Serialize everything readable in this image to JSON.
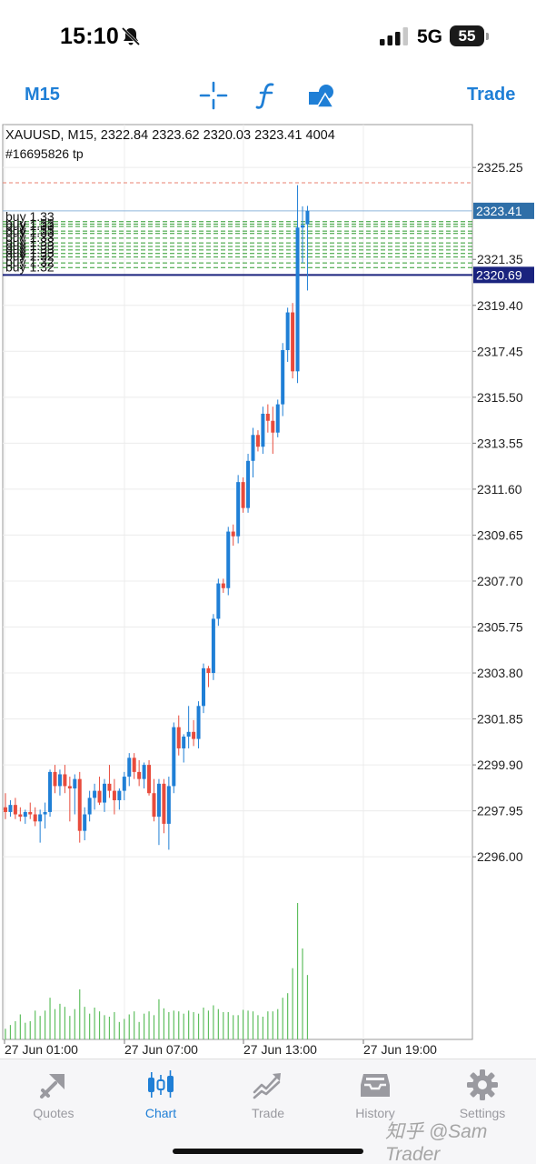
{
  "status_bar": {
    "time": "15:10",
    "network": "5G",
    "battery": "55"
  },
  "toolbar": {
    "timeframe": "M15",
    "trade_label": "Trade",
    "icons": [
      "crosshair-icon",
      "indicator-f-icon",
      "objects-icon"
    ]
  },
  "chart": {
    "header": "XAUUSD, M15, 2322.84 2323.62 2320.03 2323.41 4004",
    "order_label": "#16695826 tp",
    "tp_price": 2324.6,
    "bid_price": 2323.41,
    "order_price": 2320.69,
    "buy_lines": [
      {
        "price": 2322.95,
        "label": "buy 1.33"
      },
      {
        "price": 2322.85,
        "label": "buy 1.33"
      },
      {
        "price": 2322.75,
        "label": "buy 1.33"
      },
      {
        "price": 2322.55,
        "label": "buy 1.33"
      },
      {
        "price": 2322.45,
        "label": "buy 1.33"
      },
      {
        "price": 2322.25,
        "label": "buy 1.33"
      },
      {
        "price": 2322.05,
        "label": "buy 1.33"
      },
      {
        "price": 2321.9,
        "label": "buy 1.33"
      },
      {
        "price": 2321.75,
        "label": "buy 1.33"
      },
      {
        "price": 2321.6,
        "label": "buy 1.33"
      },
      {
        "price": 2321.45,
        "label": "buy 1.32"
      },
      {
        "price": 2321.2,
        "label": "buy 1.32"
      },
      {
        "price": 2321.0,
        "label": "buy 1.32"
      }
    ],
    "price_ticks": [
      "2325.25",
      "2321.35",
      "2319.40",
      "2317.45",
      "2315.50",
      "2313.55",
      "2311.60",
      "2309.65",
      "2307.70",
      "2305.75",
      "2303.80",
      "2301.85",
      "2299.90",
      "2297.95",
      "2296.00"
    ],
    "time_labels": [
      "27 Jun 01:00",
      "27 Jun 07:00",
      "27 Jun 13:00",
      "27 Jun 19:00"
    ],
    "colors": {
      "bull": "#1f7fd6",
      "bear": "#e84b3c",
      "volume": "#5fbf5f",
      "bid_tag": "#2f6fa8",
      "order_tag": "#1a237e",
      "buy_line": "#2e9a2e",
      "tp_line": "#e8826f"
    }
  },
  "chart_data": {
    "type": "candlestick",
    "symbol": "XAUUSD",
    "timeframe": "M15",
    "x_labels": [
      "27 Jun 01:00",
      "27 Jun 07:00",
      "27 Jun 13:00",
      "27 Jun 19:00"
    ],
    "ylim": [
      2294.0,
      2326.8
    ],
    "candles": [
      [
        2298.1,
        2298.7,
        2297.6,
        2297.9
      ],
      [
        2297.9,
        2298.4,
        2297.7,
        2298.2
      ],
      [
        2298.2,
        2298.5,
        2297.6,
        2297.8
      ],
      [
        2297.8,
        2298.1,
        2297.5,
        2297.7
      ],
      [
        2297.7,
        2298.0,
        2297.4,
        2297.9
      ],
      [
        2297.9,
        2298.3,
        2297.6,
        2297.8
      ],
      [
        2297.8,
        2298.1,
        2297.3,
        2297.5
      ],
      [
        2297.5,
        2298.0,
        2296.6,
        2297.8
      ],
      [
        2297.8,
        2298.3,
        2297.2,
        2297.9
      ],
      [
        2297.9,
        2299.7,
        2297.7,
        2299.6
      ],
      [
        2299.6,
        2299.9,
        2298.7,
        2299.0
      ],
      [
        2299.0,
        2299.7,
        2298.6,
        2299.5
      ],
      [
        2299.5,
        2299.9,
        2298.7,
        2299.0
      ],
      [
        2299.0,
        2299.4,
        2297.5,
        2298.9
      ],
      [
        2298.9,
        2299.5,
        2297.8,
        2299.3
      ],
      [
        2299.3,
        2299.6,
        2296.6,
        2297.1
      ],
      [
        2297.1,
        2298.1,
        2296.7,
        2297.8
      ],
      [
        2297.8,
        2298.8,
        2297.5,
        2298.5
      ],
      [
        2298.5,
        2299.1,
        2298.0,
        2298.8
      ],
      [
        2298.8,
        2299.4,
        2298.2,
        2298.3
      ],
      [
        2298.3,
        2299.3,
        2297.9,
        2299.1
      ],
      [
        2299.1,
        2299.9,
        2298.5,
        2298.8
      ],
      [
        2298.8,
        2299.3,
        2297.8,
        2298.4
      ],
      [
        2298.4,
        2298.9,
        2298.0,
        2298.8
      ],
      [
        2298.8,
        2299.6,
        2298.4,
        2299.4
      ],
      [
        2299.4,
        2300.4,
        2299.0,
        2300.2
      ],
      [
        2300.2,
        2300.4,
        2299.3,
        2299.6
      ],
      [
        2299.6,
        2300.1,
        2299.0,
        2299.3
      ],
      [
        2299.3,
        2300.0,
        2298.9,
        2299.9
      ],
      [
        2299.9,
        2300.1,
        2298.6,
        2298.7
      ],
      [
        2298.7,
        2299.3,
        2297.5,
        2297.7
      ],
      [
        2297.7,
        2299.3,
        2296.5,
        2299.1
      ],
      [
        2299.1,
        2299.3,
        2297.0,
        2297.4
      ],
      [
        2297.4,
        2299.4,
        2296.3,
        2299.0
      ],
      [
        2299.0,
        2301.7,
        2298.7,
        2301.5
      ],
      [
        2301.5,
        2302.0,
        2300.3,
        2300.6
      ],
      [
        2300.6,
        2301.2,
        2300.0,
        2301.1
      ],
      [
        2301.1,
        2302.4,
        2300.6,
        2301.3
      ],
      [
        2301.3,
        2301.8,
        2300.7,
        2301.0
      ],
      [
        2301.0,
        2302.6,
        2300.6,
        2302.4
      ],
      [
        2302.4,
        2304.2,
        2302.1,
        2304.0
      ],
      [
        2304.0,
        2304.1,
        2303.2,
        2303.8
      ],
      [
        2303.8,
        2306.3,
        2303.5,
        2306.1
      ],
      [
        2306.1,
        2307.8,
        2305.8,
        2307.6
      ],
      [
        2307.6,
        2307.8,
        2307.2,
        2307.4
      ],
      [
        2307.4,
        2310.0,
        2307.1,
        2309.8
      ],
      [
        2309.8,
        2310.1,
        2309.2,
        2309.6
      ],
      [
        2309.6,
        2312.2,
        2309.3,
        2311.9
      ],
      [
        2311.9,
        2312.1,
        2310.6,
        2310.8
      ],
      [
        2310.8,
        2313.1,
        2310.6,
        2312.8
      ],
      [
        2312.8,
        2314.2,
        2312.1,
        2313.9
      ],
      [
        2313.9,
        2314.1,
        2313.2,
        2313.4
      ],
      [
        2313.4,
        2315.1,
        2313.1,
        2314.8
      ],
      [
        2314.8,
        2315.2,
        2314.0,
        2314.5
      ],
      [
        2314.5,
        2315.1,
        2313.1,
        2314.0
      ],
      [
        2314.0,
        2315.4,
        2313.8,
        2315.2
      ],
      [
        2315.2,
        2317.8,
        2314.7,
        2317.5
      ],
      [
        2317.5,
        2319.3,
        2317.0,
        2319.1
      ],
      [
        2319.1,
        2319.5,
        2316.3,
        2316.6
      ],
      [
        2316.6,
        2324.5,
        2316.1,
        2322.7
      ],
      [
        2322.7,
        2323.6,
        2321.2,
        2322.8
      ],
      [
        2322.84,
        2323.62,
        2320.03,
        2323.41
      ]
    ],
    "volume": [
      14,
      19,
      24,
      33,
      22,
      24,
      38,
      31,
      38,
      55,
      40,
      47,
      43,
      31,
      40,
      66,
      43,
      34,
      42,
      37,
      32,
      30,
      36,
      23,
      27,
      33,
      37,
      23,
      34,
      37,
      32,
      53,
      41,
      36,
      38,
      37,
      34,
      38,
      36,
      34,
      42,
      38,
      45,
      40,
      36,
      36,
      32,
      32,
      39,
      38,
      37,
      32,
      30,
      37,
      37,
      40,
      55,
      61,
      94,
      180,
      120,
      85
    ]
  },
  "tabs": [
    {
      "label": "Quotes",
      "icon": "quotes-icon"
    },
    {
      "label": "Chart",
      "icon": "chart-icon"
    },
    {
      "label": "Trade",
      "icon": "trade-icon"
    },
    {
      "label": "History",
      "icon": "history-icon"
    },
    {
      "label": "Settings",
      "icon": "settings-icon"
    }
  ],
  "watermark": "知乎 @Sam Trader"
}
